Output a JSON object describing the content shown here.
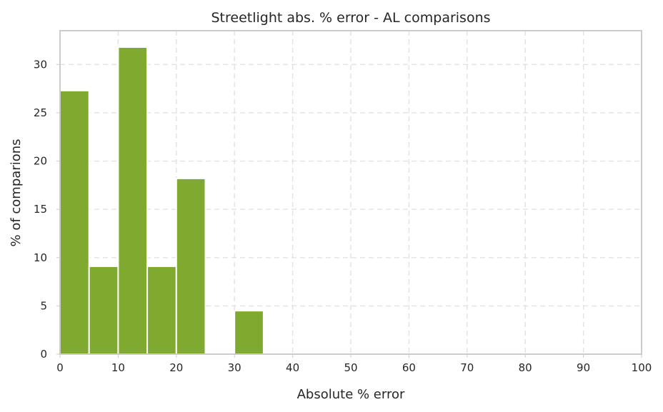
{
  "chart_data": {
    "type": "bar",
    "title": "Streetlight abs. % error - AL comparisons",
    "xlabel": "Absolute % error",
    "ylabel": "% of comparions",
    "xlim": [
      0,
      100
    ],
    "ylim": [
      0,
      33.5
    ],
    "x_ticks": [
      "0",
      "10",
      "20",
      "30",
      "40",
      "50",
      "60",
      "70",
      "80",
      "90",
      "100"
    ],
    "y_ticks": [
      "0",
      "5",
      "10",
      "15",
      "20",
      "25",
      "30"
    ],
    "bin_width": 5,
    "bins": [
      {
        "x_start": 0,
        "value": 27.3
      },
      {
        "x_start": 5,
        "value": 9.1
      },
      {
        "x_start": 10,
        "value": 31.8
      },
      {
        "x_start": 15,
        "value": 9.1
      },
      {
        "x_start": 20,
        "value": 18.2
      },
      {
        "x_start": 25,
        "value": 0
      },
      {
        "x_start": 30,
        "value": 4.5
      }
    ],
    "bar_color": "#7faa2f",
    "grid": true,
    "legend": "none"
  }
}
